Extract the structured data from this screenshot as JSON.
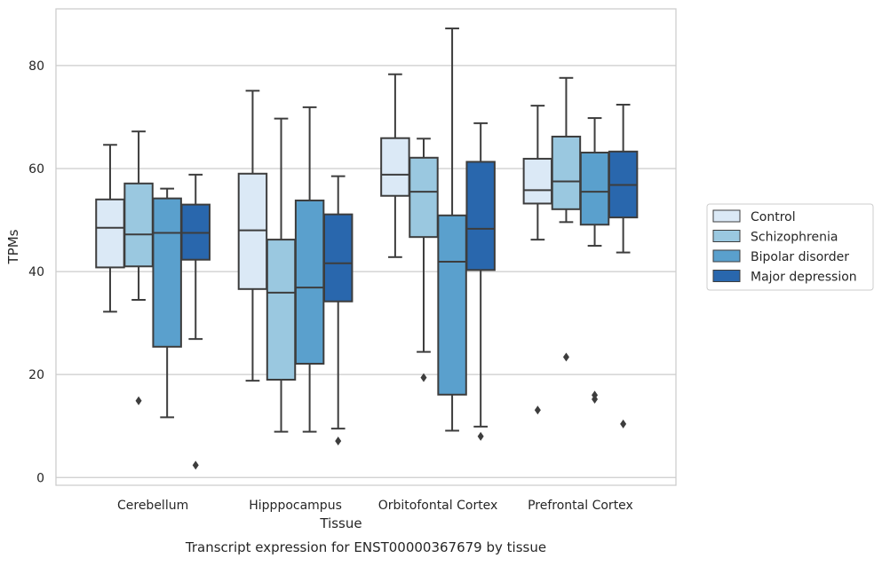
{
  "caption": "Transcript expression for ENST00000367679 by tissue",
  "chart_data": {
    "type": "box",
    "title": "",
    "xlabel": "Tissue",
    "ylabel": "TPMs",
    "ylim": [
      -1.5,
      91
    ],
    "yticks": [
      0,
      20,
      40,
      60,
      80
    ],
    "grid": "horizontal",
    "legend_position": "right",
    "categories": [
      "Cerebellum",
      "Hipppocampus",
      "Orbitofontal Cortex",
      "Prefrontal Cortex"
    ],
    "series": [
      {
        "name": "Control",
        "color": "#dbe9f6",
        "boxes": [
          {
            "min": 32.2,
            "q1": 40.8,
            "median": 48.5,
            "q3": 54.0,
            "max": 64.6,
            "outliers": []
          },
          {
            "min": 18.8,
            "q1": 36.6,
            "median": 48.0,
            "q3": 59.0,
            "max": 75.1,
            "outliers": []
          },
          {
            "min": 42.8,
            "q1": 54.7,
            "median": 58.8,
            "q3": 65.9,
            "max": 78.3,
            "outliers": []
          },
          {
            "min": 46.2,
            "q1": 53.2,
            "median": 55.8,
            "q3": 61.9,
            "max": 72.2,
            "outliers": [
              13.1
            ]
          }
        ]
      },
      {
        "name": "Schizophrenia",
        "color": "#9ac8e0",
        "boxes": [
          {
            "min": 34.5,
            "q1": 41.0,
            "median": 47.2,
            "q3": 57.1,
            "max": 67.2,
            "outliers": [
              14.9
            ]
          },
          {
            "min": 8.9,
            "q1": 19.0,
            "median": 35.9,
            "q3": 46.2,
            "max": 69.7,
            "outliers": []
          },
          {
            "min": 24.4,
            "q1": 46.7,
            "median": 55.5,
            "q3": 62.1,
            "max": 65.8,
            "outliers": [
              19.4
            ]
          },
          {
            "min": 49.6,
            "q1": 52.1,
            "median": 57.5,
            "q3": 66.2,
            "max": 77.6,
            "outliers": [
              23.4
            ]
          }
        ]
      },
      {
        "name": "Bipolar disorder",
        "color": "#5aa0cd",
        "boxes": [
          {
            "min": 11.7,
            "q1": 25.4,
            "median": 47.5,
            "q3": 54.2,
            "max": 56.1,
            "outliers": []
          },
          {
            "min": 8.9,
            "q1": 22.1,
            "median": 36.9,
            "q3": 53.8,
            "max": 71.9,
            "outliers": []
          },
          {
            "min": 9.1,
            "q1": 16.1,
            "median": 41.9,
            "q3": 50.9,
            "max": 87.2,
            "outliers": []
          },
          {
            "min": 45.0,
            "q1": 49.1,
            "median": 55.5,
            "q3": 63.1,
            "max": 69.8,
            "outliers": [
              15.2,
              16.0
            ]
          }
        ]
      },
      {
        "name": "Major depression",
        "color": "#2967ad",
        "boxes": [
          {
            "min": 26.9,
            "q1": 42.3,
            "median": 47.5,
            "q3": 53.0,
            "max": 58.8,
            "outliers": [
              2.4
            ]
          },
          {
            "min": 9.5,
            "q1": 34.2,
            "median": 41.6,
            "q3": 51.1,
            "max": 58.5,
            "outliers": [
              7.1
            ]
          },
          {
            "min": 9.9,
            "q1": 40.3,
            "median": 48.3,
            "q3": 61.3,
            "max": 68.8,
            "outliers": [
              8.0
            ]
          },
          {
            "min": 43.7,
            "q1": 50.5,
            "median": 56.8,
            "q3": 63.3,
            "max": 72.4,
            "outliers": [
              10.4
            ]
          }
        ]
      }
    ]
  }
}
